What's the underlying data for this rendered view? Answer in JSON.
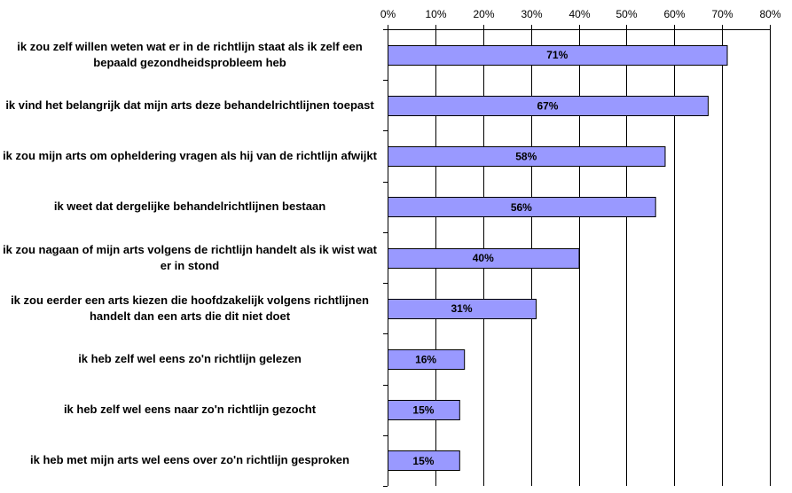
{
  "chart_data": {
    "type": "bar",
    "orientation": "horizontal",
    "categories": [
      "ik zou zelf willen weten wat er in de richtlijn staat als ik zelf een bepaald gezondheidsprobleem heb",
      "ik vind het belangrijk dat mijn arts deze behandelrichtlijnen toepast",
      "ik zou mijn arts om opheldering vragen als hij van de richtlijn afwijkt",
      "ik weet dat dergelijke behandelrichtlijnen bestaan",
      "ik zou nagaan of mijn arts volgens de richtlijn handelt als ik wist wat er in stond",
      "ik zou eerder een arts kiezen die hoofdzakelijk volgens richtlijnen handelt dan een arts die dit niet doet",
      "ik heb zelf wel eens zo'n richtlijn gelezen",
      "ik heb zelf wel eens naar zo'n richtlijn gezocht",
      "ik heb met mijn arts wel eens over zo'n richtlijn gesproken"
    ],
    "values": [
      71,
      67,
      58,
      56,
      40,
      31,
      16,
      15,
      15
    ],
    "data_labels": [
      "71%",
      "67%",
      "58%",
      "56%",
      "40%",
      "31%",
      "16%",
      "15%",
      "15%"
    ],
    "x_ticks": [
      "0%",
      "10%",
      "20%",
      "30%",
      "40%",
      "50%",
      "60%",
      "70%",
      "80%"
    ],
    "xlim": [
      0,
      80
    ],
    "x_axis_position": "top",
    "grid": true,
    "legend": "none",
    "title": "",
    "xlabel": "",
    "ylabel": "",
    "colors": {
      "bar_fill": "#9999ff",
      "bar_stroke": "#000000",
      "grid": "#000000",
      "background": "#ffffff"
    }
  }
}
